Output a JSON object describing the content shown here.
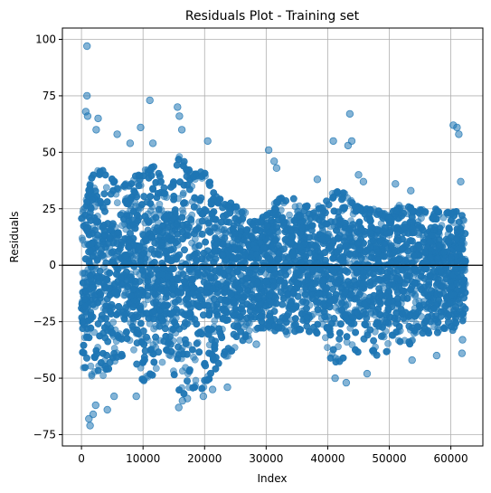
{
  "chart_data": {
    "type": "scatter",
    "title": "Residuals Plot - Training set",
    "xlabel": "Index",
    "ylabel": "Residuals",
    "xlim": [
      -3100,
      65200
    ],
    "ylim": [
      -80,
      105
    ],
    "x_ticks": [
      0,
      10000,
      20000,
      30000,
      40000,
      50000,
      60000
    ],
    "y_ticks": [
      -75,
      -50,
      -25,
      0,
      25,
      50,
      75,
      100
    ],
    "grid": true,
    "reference_line": 0,
    "marker_color": "#1f77b4",
    "marker_alpha": 0.55,
    "n_points": 62400,
    "band_profile": [
      {
        "x": 0,
        "upper": 22,
        "lower": -45
      },
      {
        "x": 2000,
        "upper": 42,
        "lower": -55
      },
      {
        "x": 4000,
        "upper": 42,
        "lower": -48
      },
      {
        "x": 6000,
        "upper": 35,
        "lower": -42
      },
      {
        "x": 8000,
        "upper": 38,
        "lower": -38
      },
      {
        "x": 10000,
        "upper": 42,
        "lower": -52
      },
      {
        "x": 12000,
        "upper": 45,
        "lower": -50
      },
      {
        "x": 14000,
        "upper": 30,
        "lower": -38
      },
      {
        "x": 16000,
        "upper": 50,
        "lower": -58
      },
      {
        "x": 18000,
        "upper": 40,
        "lower": -55
      },
      {
        "x": 20000,
        "upper": 42,
        "lower": -55
      },
      {
        "x": 22000,
        "upper": 30,
        "lower": -45
      },
      {
        "x": 24000,
        "upper": 28,
        "lower": -40
      },
      {
        "x": 26000,
        "upper": 25,
        "lower": -35
      },
      {
        "x": 28000,
        "upper": 20,
        "lower": -30
      },
      {
        "x": 30000,
        "upper": 22,
        "lower": -28
      },
      {
        "x": 32000,
        "upper": 30,
        "lower": -30
      },
      {
        "x": 34000,
        "upper": 30,
        "lower": -32
      },
      {
        "x": 36000,
        "upper": 28,
        "lower": -30
      },
      {
        "x": 38000,
        "upper": 25,
        "lower": -30
      },
      {
        "x": 40000,
        "upper": 30,
        "lower": -40
      },
      {
        "x": 42000,
        "upper": 35,
        "lower": -45
      },
      {
        "x": 44000,
        "upper": 28,
        "lower": -40
      },
      {
        "x": 46000,
        "upper": 25,
        "lower": -38
      },
      {
        "x": 48000,
        "upper": 25,
        "lower": -40
      },
      {
        "x": 50000,
        "upper": 22,
        "lower": -38
      },
      {
        "x": 52000,
        "upper": 28,
        "lower": -35
      },
      {
        "x": 54000,
        "upper": 25,
        "lower": -35
      },
      {
        "x": 56000,
        "upper": 25,
        "lower": -30
      },
      {
        "x": 58000,
        "upper": 25,
        "lower": -30
      },
      {
        "x": 60000,
        "upper": 25,
        "lower": -30
      },
      {
        "x": 62400,
        "upper": 22,
        "lower": -25
      }
    ],
    "outliers": [
      {
        "x": 900,
        "y": 97
      },
      {
        "x": 900,
        "y": 75
      },
      {
        "x": 700,
        "y": 68
      },
      {
        "x": 1000,
        "y": 66
      },
      {
        "x": 2700,
        "y": 65
      },
      {
        "x": 2400,
        "y": 60
      },
      {
        "x": 5800,
        "y": 58
      },
      {
        "x": 7900,
        "y": 54
      },
      {
        "x": 9600,
        "y": 61
      },
      {
        "x": 11100,
        "y": 73
      },
      {
        "x": 11600,
        "y": 54
      },
      {
        "x": 15600,
        "y": 70
      },
      {
        "x": 15900,
        "y": 66
      },
      {
        "x": 16300,
        "y": 60
      },
      {
        "x": 20500,
        "y": 55
      },
      {
        "x": 30400,
        "y": 51
      },
      {
        "x": 31300,
        "y": 46
      },
      {
        "x": 31700,
        "y": 43
      },
      {
        "x": 38300,
        "y": 38
      },
      {
        "x": 40900,
        "y": 55
      },
      {
        "x": 43300,
        "y": 53
      },
      {
        "x": 43900,
        "y": 55
      },
      {
        "x": 43600,
        "y": 67
      },
      {
        "x": 45000,
        "y": 40
      },
      {
        "x": 45800,
        "y": 37
      },
      {
        "x": 51000,
        "y": 36
      },
      {
        "x": 53500,
        "y": 33
      },
      {
        "x": 60400,
        "y": 62
      },
      {
        "x": 61000,
        "y": 61
      },
      {
        "x": 61300,
        "y": 58
      },
      {
        "x": 61600,
        "y": 37
      },
      {
        "x": 1200,
        "y": -68
      },
      {
        "x": 1400,
        "y": -71
      },
      {
        "x": 1900,
        "y": -66
      },
      {
        "x": 2300,
        "y": -62
      },
      {
        "x": 4200,
        "y": -64
      },
      {
        "x": 5300,
        "y": -58
      },
      {
        "x": 8900,
        "y": -58
      },
      {
        "x": 15800,
        "y": -63
      },
      {
        "x": 16400,
        "y": -60
      },
      {
        "x": 17200,
        "y": -59
      },
      {
        "x": 19800,
        "y": -58
      },
      {
        "x": 21300,
        "y": -55
      },
      {
        "x": 23700,
        "y": -54
      },
      {
        "x": 41200,
        "y": -50
      },
      {
        "x": 43000,
        "y": -52
      },
      {
        "x": 46400,
        "y": -48
      },
      {
        "x": 53700,
        "y": -42
      },
      {
        "x": 57700,
        "y": -40
      },
      {
        "x": 61800,
        "y": -39
      },
      {
        "x": 61900,
        "y": -33
      },
      {
        "x": 27200,
        "y": -33
      },
      {
        "x": 28400,
        "y": -35
      }
    ]
  }
}
